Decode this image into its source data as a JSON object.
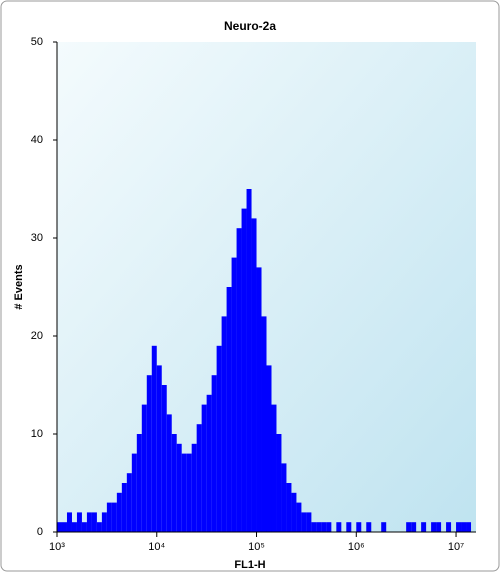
{
  "chart_data": {
    "type": "histogram",
    "title": "Neuro-2a",
    "x_label": "FL1-H",
    "y_label": "# Events",
    "color": "#0000ff",
    "xscale": "log",
    "bins": [
      1000,
      1122,
      1259,
      1413,
      1585,
      1778,
      1995,
      2239,
      2512,
      2818,
      3162,
      3548,
      3981,
      4467,
      5012,
      5623,
      6310,
      7079,
      7943,
      8913,
      10000,
      11220,
      12590,
      14130,
      15850,
      17780,
      19950,
      22390,
      25120,
      28180,
      31620,
      35480,
      39810,
      44670,
      50120,
      56230,
      63100,
      70790,
      79430,
      89130,
      100000,
      112200,
      125900,
      141300,
      158500,
      177800,
      199500,
      223900,
      251200,
      281800,
      316200,
      354800,
      398100,
      446700,
      501200,
      562300,
      631000,
      707900,
      794300,
      891300,
      1000000,
      1122000,
      1259000,
      1413000,
      1585000,
      1778000,
      1995000,
      2239000,
      2512000,
      2818000,
      3162000,
      3548000,
      3981000,
      4467000,
      5012000,
      5623000,
      6310000,
      7079000,
      7943000,
      8913000,
      10000000,
      11220000,
      12590000,
      14130000,
      15850000
    ],
    "values": [
      1,
      1,
      2,
      1,
      2,
      1,
      2,
      2,
      1,
      2,
      3,
      3,
      4,
      5,
      6,
      8,
      10,
      13,
      16,
      19,
      17,
      15,
      12,
      10,
      9,
      8,
      8,
      9,
      11,
      13,
      14,
      16,
      19,
      22,
      25,
      28,
      31,
      33,
      35,
      32,
      27,
      22,
      17,
      13,
      10,
      7,
      5,
      4,
      3,
      2,
      2,
      1,
      1,
      1,
      1,
      0,
      1,
      0,
      1,
      0,
      1,
      0,
      1,
      0,
      0,
      1,
      0,
      0,
      0,
      0,
      1,
      1,
      0,
      1,
      0,
      1,
      1,
      0,
      1,
      0,
      1,
      1,
      1,
      0
    ],
    "xlim": [
      1000,
      15850000
    ],
    "xticks": [
      {
        "value": 1000,
        "label": "10³"
      },
      {
        "value": 10000,
        "label": "10⁴"
      },
      {
        "value": 100000,
        "label": "10⁵"
      },
      {
        "value": 1000000,
        "label": "10⁶"
      },
      {
        "value": 10000000,
        "label": "10⁷"
      }
    ],
    "ylim": [
      0,
      50
    ],
    "yticks": [
      0,
      10,
      20,
      30,
      40,
      50
    ]
  }
}
